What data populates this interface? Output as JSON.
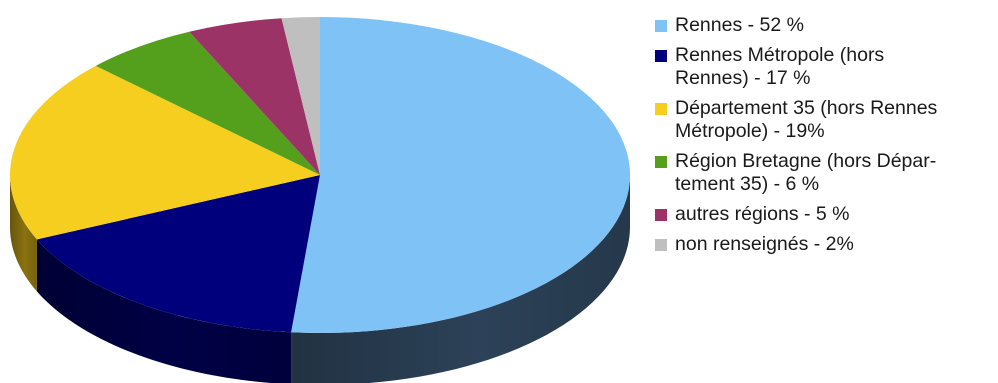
{
  "chart_data": {
    "type": "pie",
    "title": "",
    "legend_position": "right",
    "slices": [
      {
        "label": "Rennes - 52 %",
        "value": 52,
        "color": "#7fc2f6",
        "side_color": "#2c4258"
      },
      {
        "label": "Rennes Métropole (hors\nRennes) - 17 %",
        "value": 17,
        "color": "#00007c",
        "side_color": "#000046"
      },
      {
        "label": "Département 35 (hors Rennes\nMétropole) - 19%",
        "value": 19,
        "color": "#f6ce1f",
        "side_color": "#8a7210"
      },
      {
        "label": "Région Bretagne (hors Dépar-\ntement 35) - 6 %",
        "value": 6,
        "color": "#54a01c",
        "side_color": "#2f5a10"
      },
      {
        "label": "autres régions - 5 %",
        "value": 5,
        "color": "#9b3366",
        "side_color": "#561c39"
      },
      {
        "label": "non renseignés - 2%",
        "value": 2,
        "color": "#bfbfbf",
        "side_color": "#6b6b6b"
      }
    ]
  }
}
